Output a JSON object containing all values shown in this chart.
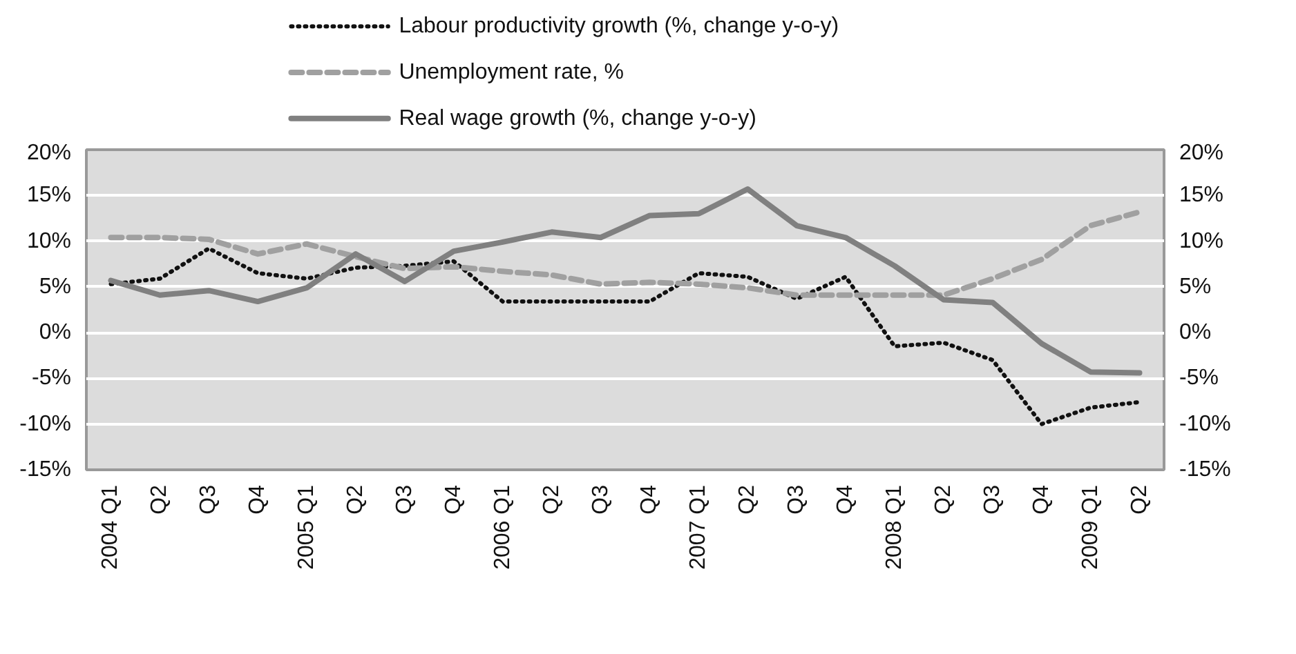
{
  "chart_data": {
    "type": "line",
    "categories": [
      "2004 Q1",
      "Q2",
      "Q3",
      "Q4",
      "2005 Q1",
      "Q2",
      "Q3",
      "Q4",
      "2006 Q1",
      "Q2",
      "Q3",
      "Q4",
      "2007 Q1",
      "Q2",
      "Q3",
      "Q4",
      "2008 Q1",
      "Q2",
      "Q3",
      "Q4",
      "2009 Q1",
      "Q2"
    ],
    "series": [
      {
        "name": "Labour productivity growth (%, change y-o-y)",
        "color": "#111111",
        "line_style": "dotted",
        "values": [
          5.3,
          5.9,
          9.2,
          6.5,
          5.9,
          7.1,
          7.3,
          7.8,
          3.4,
          3.4,
          3.4,
          3.4,
          6.5,
          6.1,
          3.7,
          6.1,
          -1.5,
          -1.1,
          -3.0,
          -10.0,
          -8.2,
          -7.6
        ]
      },
      {
        "name": "Unemployment rate, %",
        "color": "#a0a0a0",
        "line_style": "dashed",
        "values": [
          10.4,
          10.4,
          10.2,
          8.6,
          9.7,
          8.3,
          7.0,
          7.2,
          6.7,
          6.3,
          5.3,
          5.5,
          5.3,
          4.9,
          4.1,
          4.1,
          4.1,
          4.1,
          5.9,
          8.0,
          11.7,
          13.2
        ]
      },
      {
        "name": "Real wage growth (%, change y-o-y)",
        "color": "#808080",
        "line_style": "solid",
        "values": [
          5.7,
          4.1,
          4.6,
          3.4,
          4.9,
          8.6,
          5.6,
          8.9,
          9.9,
          11.0,
          10.4,
          12.8,
          13.0,
          15.7,
          11.7,
          10.4,
          7.3,
          3.6,
          3.3,
          -1.2,
          -4.3,
          -4.4
        ]
      }
    ],
    "ylim": [
      -15,
      20
    ],
    "yticks": [
      {
        "value": -15,
        "label": "-15%"
      },
      {
        "value": -10,
        "label": "-10%"
      },
      {
        "value": -5,
        "label": "-5%"
      },
      {
        "value": 0,
        "label": "0%"
      },
      {
        "value": 5,
        "label": "5%"
      },
      {
        "value": 10,
        "label": "10%"
      },
      {
        "value": 15,
        "label": "15%"
      },
      {
        "value": 20,
        "label": "20%"
      }
    ],
    "y2lim": [
      -15,
      20
    ],
    "y2ticks": [
      {
        "value": -15,
        "label": "-15%"
      },
      {
        "value": -10,
        "label": "-10%"
      },
      {
        "value": -5,
        "label": "-5%"
      },
      {
        "value": 0,
        "label": "0%"
      },
      {
        "value": 5,
        "label": "5%"
      },
      {
        "value": 10,
        "label": "10%"
      },
      {
        "value": 15,
        "label": "15%"
      },
      {
        "value": 20,
        "label": "20%"
      }
    ],
    "grid": "y",
    "legend": "top",
    "marker": "none"
  }
}
